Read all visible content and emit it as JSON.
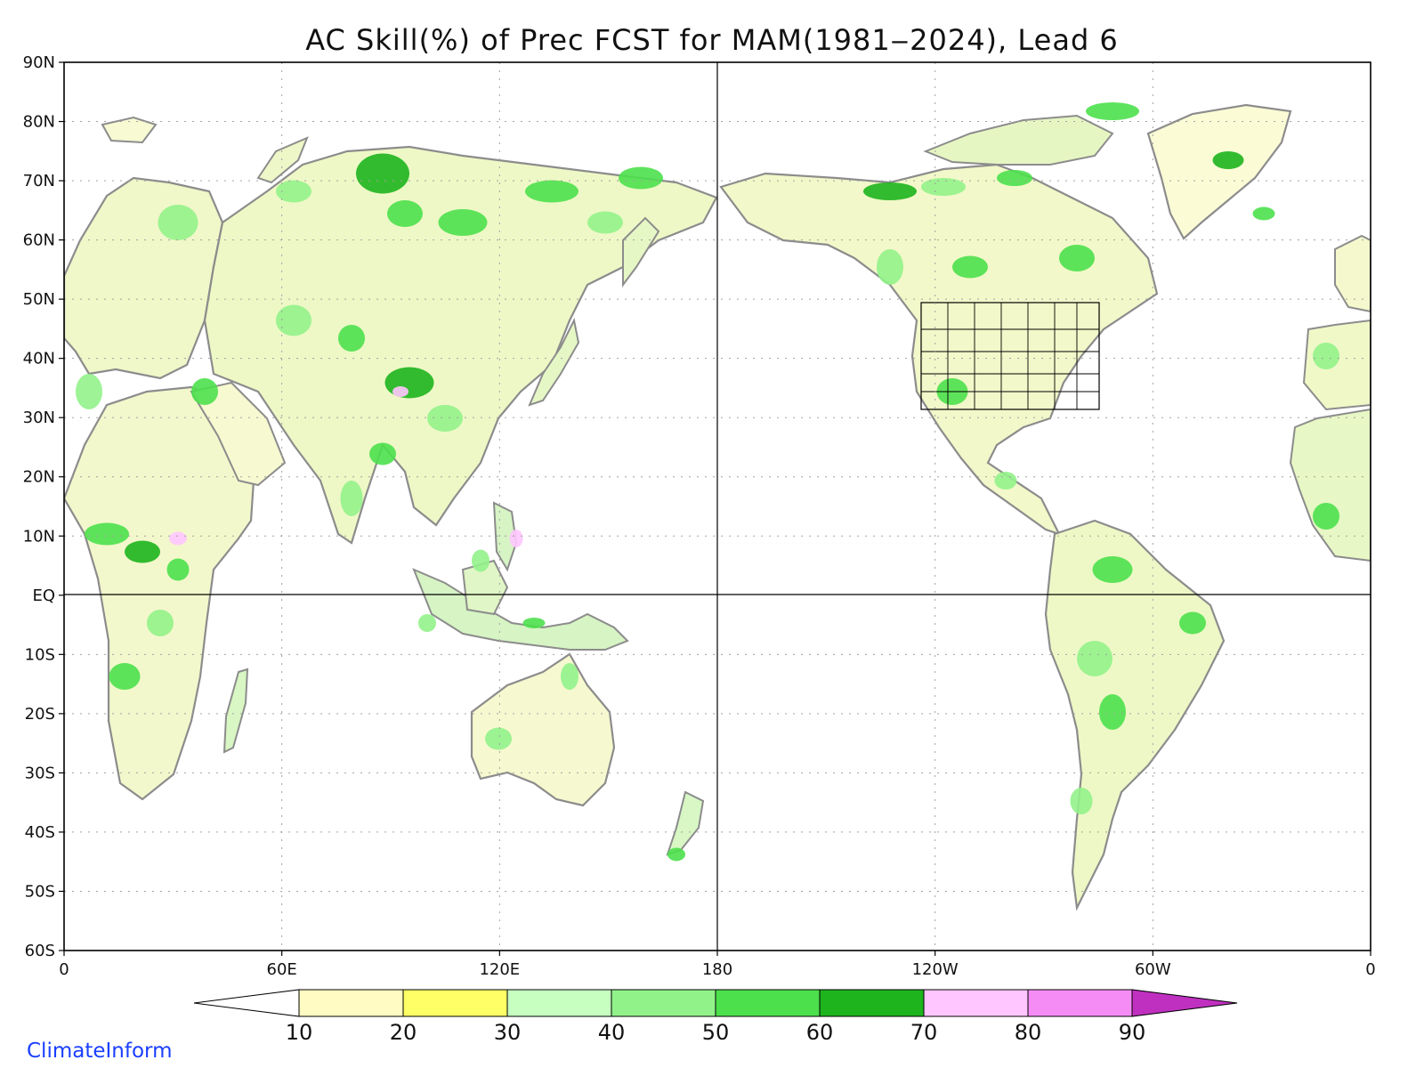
{
  "title": "AC Skill(%) of Prec FCST for MAM(1981‒2024), Lead 6",
  "credit": "ClimateInform",
  "lat_labels": [
    "90N",
    "80N",
    "70N",
    "60N",
    "50N",
    "40N",
    "30N",
    "20N",
    "10N",
    "EQ",
    "10S",
    "20S",
    "30S",
    "40S",
    "50S",
    "60S"
  ],
  "lon_labels": [
    "0",
    "60E",
    "120E",
    "180",
    "120W",
    "60W",
    "0"
  ],
  "colorbar": {
    "bins": [
      {
        "label": "10",
        "color": "#fffbc2"
      },
      {
        "label": "20",
        "color": "#ffff66"
      },
      {
        "label": "30",
        "color": "#c6ffc0"
      },
      {
        "label": "40",
        "color": "#92f28a"
      },
      {
        "label": "50",
        "color": "#4ce04c"
      },
      {
        "label": "60",
        "color": "#1db41d"
      },
      {
        "label": "70",
        "color": "#ffc6ff"
      },
      {
        "label": "80",
        "color": "#f58cf5"
      },
      {
        "label": "90",
        "color": "#cc33cc"
      }
    ],
    "under_color": "#ffffff",
    "over_color": "#c030c0"
  },
  "colors": {
    "coast": "#8c8c8c",
    "grid": "#a0a0a0",
    "frame": "#000000"
  }
}
